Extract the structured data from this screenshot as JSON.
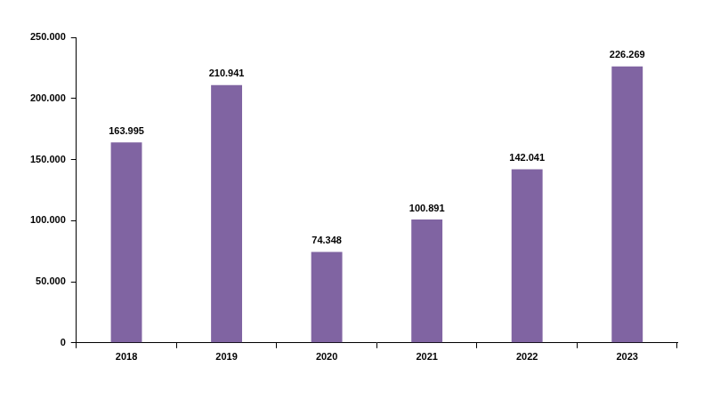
{
  "chart_data": {
    "type": "bar",
    "categories": [
      "2018",
      "2019",
      "2020",
      "2021",
      "2022",
      "2023"
    ],
    "values": [
      163995,
      210941,
      74348,
      100891,
      142041,
      226269
    ],
    "value_labels": [
      "163.995",
      "210.941",
      "74.348",
      "100.891",
      "142.041",
      "226.269"
    ],
    "color": "#8064a2",
    "ylim": [
      0,
      250000
    ],
    "yticks": [
      0,
      {
        "value": 50000,
        "label": "50.000"
      },
      {
        "value": 100000,
        "label": "100.000"
      },
      {
        "value": 150000,
        "label": "150.000"
      },
      {
        "value": 200000,
        "label": "200.000"
      },
      {
        "value": 250000,
        "label": "250.000"
      }
    ],
    "grid": false,
    "data_labels": true
  }
}
